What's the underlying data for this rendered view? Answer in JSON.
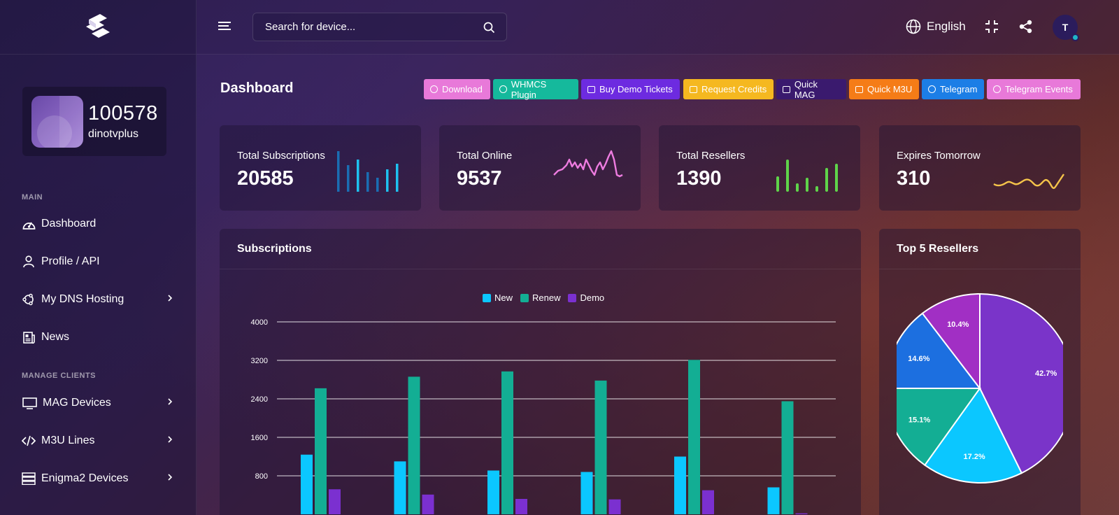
{
  "app": {
    "search_placeholder": "Search for device...",
    "language": "English",
    "avatar_initial": "T"
  },
  "sidebar": {
    "user": {
      "id": "100578",
      "name": "dinotvplus"
    },
    "section_main": "MAIN",
    "section_manage": "MANAGE CLIENTS",
    "items": [
      {
        "label": "Dashboard",
        "icon": "gauge-icon"
      },
      {
        "label": "Profile / API",
        "icon": "user-icon"
      },
      {
        "label": "My DNS Hosting",
        "icon": "dns-icon"
      },
      {
        "label": "News",
        "icon": "newspaper-icon"
      },
      {
        "label": "MAG Devices",
        "icon": "monitor-icon"
      },
      {
        "label": "M3U Lines",
        "icon": "code-icon"
      },
      {
        "label": "Enigma2 Devices",
        "icon": "server-icon"
      }
    ]
  },
  "page": {
    "title": "Dashboard",
    "buttons": [
      {
        "label": "Download",
        "color": "#e879d9"
      },
      {
        "label": "WHMCS Plugin",
        "color": "#15b99c"
      },
      {
        "label": "Buy Demo Tickets",
        "color": "#6d2be0"
      },
      {
        "label": "Request Credits",
        "color": "#f5b820"
      },
      {
        "label": "Quick MAG",
        "color": "#3a1a6e"
      },
      {
        "label": "Quick M3U",
        "color": "#f57c17"
      },
      {
        "label": "Telegram",
        "color": "#1c7ee6"
      },
      {
        "label": "Telegram Events",
        "color": "#e879d9"
      }
    ]
  },
  "stats": [
    {
      "label": "Total Subscriptions",
      "value": "20585",
      "color": "#1ec2f0"
    },
    {
      "label": "Total Online",
      "value": "9537",
      "color": "#ee7ce0"
    },
    {
      "label": "Total Resellers",
      "value": "1390",
      "color": "#5fd44a"
    },
    {
      "label": "Expires Tomorrow",
      "value": "310",
      "color": "#f5c44a"
    }
  ],
  "subscriptions_card": {
    "title": "Subscriptions"
  },
  "resellers_card": {
    "title": "Top 5 Resellers"
  },
  "chart_data": [
    {
      "type": "bar",
      "title": "Subscriptions",
      "legend_position": "top",
      "ylim": [
        0,
        4000
      ],
      "yticks": [
        800,
        1600,
        2400,
        3200,
        4000
      ],
      "grid": true,
      "categories": [
        "",
        "",
        "",
        "",
        "",
        ""
      ],
      "series": [
        {
          "name": "New",
          "color": "#0bc7ff",
          "values": [
            1240,
            1100,
            910,
            880,
            1200,
            560
          ]
        },
        {
          "name": "Renew",
          "color": "#13ae94",
          "values": [
            2620,
            2860,
            2970,
            2780,
            3210,
            2350
          ]
        },
        {
          "name": "Demo",
          "color": "#7b30d0",
          "values": [
            520,
            410,
            320,
            310,
            500,
            20
          ]
        }
      ]
    },
    {
      "type": "pie",
      "title": "Top 5 Resellers",
      "slices": [
        {
          "label": "42.7%",
          "value": 42.7,
          "color": "#7a34c9"
        },
        {
          "label": "17.2%",
          "value": 17.2,
          "color": "#0bc7ff"
        },
        {
          "label": "15.1%",
          "value": 15.1,
          "color": "#13ae94"
        },
        {
          "label": "14.6%",
          "value": 14.6,
          "color": "#1c6fe0"
        },
        {
          "label": "10.4%",
          "value": 10.4,
          "color": "#a12fc4"
        }
      ]
    }
  ]
}
